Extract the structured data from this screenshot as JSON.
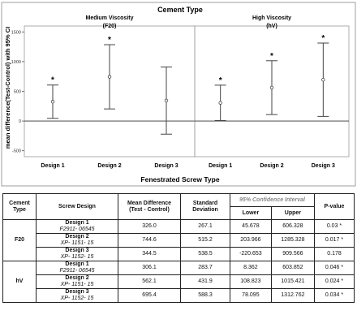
{
  "chart_data": {
    "type": "errorbar",
    "title": "Cement Type",
    "xlabel": "Fenestrated Screw Type",
    "ylabel": "mean difference(Test-Control) with 95% CI",
    "ylim": [
      -600,
      1600
    ],
    "yticks": [
      -500,
      0,
      500,
      1000,
      1500
    ],
    "grid": false,
    "panels": [
      {
        "title_line1": "Medium Viscosity",
        "title_line2": "(F20)",
        "categories": [
          "Design 1",
          "Design 2",
          "Design 3"
        ],
        "mean": [
          326.0,
          744.6,
          344.5
        ],
        "lower": [
          45.678,
          203.966,
          -220.653
        ],
        "upper": [
          606.328,
          1285.328,
          909.566
        ],
        "significant": [
          "*",
          "*",
          ""
        ]
      },
      {
        "title_line1": "High Viscosity",
        "title_line2": "(hV)",
        "categories": [
          "Design 1",
          "Design 2",
          "Design 3"
        ],
        "mean": [
          306.1,
          562.1,
          695.4
        ],
        "lower": [
          8.362,
          108.823,
          78.095
        ],
        "upper": [
          603.852,
          1015.421,
          1312.762
        ],
        "significant": [
          "*",
          "*",
          "*"
        ]
      }
    ]
  },
  "table": {
    "headers": {
      "cement_type": "Cement Type",
      "screw_design": "Screw Design",
      "mean_diff": "Mean Difference (Test - Control)",
      "std_dev": "Standard Deviation",
      "ci": "95% Confidence Interval",
      "lower": "Lower",
      "upper": "Upper",
      "p_value": "P-value"
    },
    "groups": [
      {
        "cement": "F20",
        "rows": [
          {
            "design": "Design 1",
            "part": "F2911- 06545",
            "mean": "326.0",
            "sd": "267.1",
            "lower": "45.678",
            "upper": "606.328",
            "p": "0.03 *"
          },
          {
            "design": "Design 2",
            "part": "XP- 1151- 15",
            "mean": "744.6",
            "sd": "515.2",
            "lower": "203.966",
            "upper": "1285.328",
            "p": "0.017 *"
          },
          {
            "design": "Design 3",
            "part": "XP- 1152- 15",
            "mean": "344.5",
            "sd": "538.5",
            "lower": "-220.653",
            "upper": "909.566",
            "p": "0.178"
          }
        ]
      },
      {
        "cement": "hV",
        "rows": [
          {
            "design": "Design 1",
            "part": "F2911- 06545",
            "mean": "306.1",
            "sd": "283.7",
            "lower": "8.362",
            "upper": "603.852",
            "p": "0.046 *"
          },
          {
            "design": "Design 2",
            "part": "XP- 1151- 15",
            "mean": "562.1",
            "sd": "431.9",
            "lower": "108.823",
            "upper": "1015.421",
            "p": "0.024 *"
          },
          {
            "design": "Design 3",
            "part": "XP- 1152- 15",
            "mean": "695.4",
            "sd": "588.3",
            "lower": "78.095",
            "upper": "1312.762",
            "p": "0.034 *"
          }
        ]
      }
    ]
  }
}
